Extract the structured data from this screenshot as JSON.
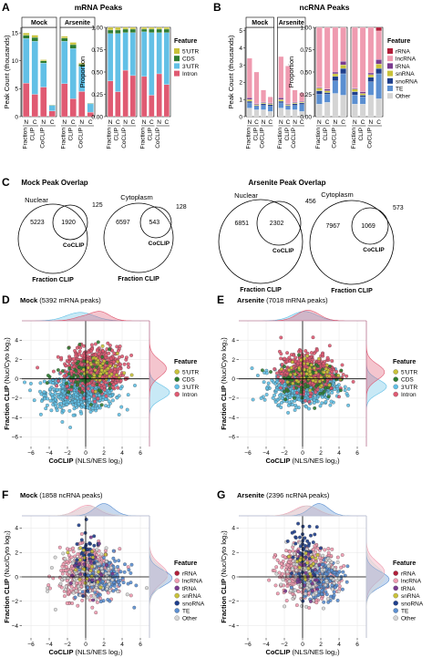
{
  "panel_letters": [
    "A",
    "B",
    "C",
    "D",
    "E",
    "F",
    "G"
  ],
  "colors": {
    "5UTR": "#c9c23a",
    "CDS": "#2f7d32",
    "3UTR": "#62c0e6",
    "Intron": "#e05a72",
    "rRNA": "#b21f3a",
    "lncRNA": "#ef9bb0",
    "tRNA": "#7a3b8f",
    "snRNA": "#c9c23a",
    "snoRNA": "#1f3f8c",
    "TE": "#5b8fd1",
    "Other": "#d4d4d4"
  },
  "chart_data": [
    {
      "id": "A",
      "type": "bar",
      "title": "mRNA Peaks",
      "groups": [
        "Mock",
        "Arsenite"
      ],
      "subgroups": [
        {
          "label": "Fraction CLIP",
          "bars": [
            "N",
            "C"
          ]
        },
        {
          "label": "CoCLIP",
          "bars": [
            "N",
            "C"
          ]
        }
      ],
      "legend_title": "Feature",
      "legend": [
        "5'UTR",
        "CDS",
        "3'UTR",
        "Intron"
      ],
      "count_panel": {
        "ylabel": "Peak Count (thousands)",
        "ylim": [
          0,
          16
        ],
        "ticks": [
          0,
          5,
          10,
          15
        ],
        "series": [
          {
            "name": "Intron",
            "values": [
              6.0,
              4.0,
              5.3,
              1.0,
              5.9,
              3.2,
              4.5,
              0.8
            ]
          },
          {
            "name": "3'UTR",
            "values": [
              8.0,
              9.5,
              4.3,
              1.0,
              7.6,
              9.0,
              4.5,
              1.5
            ]
          },
          {
            "name": "CDS",
            "values": [
              0.6,
              0.7,
              0.4,
              0.1,
              0.6,
              0.7,
              0.4,
              0.1
            ]
          },
          {
            "name": "5'UTR",
            "values": [
              0.4,
              0.4,
              0.2,
              0.0,
              0.3,
              0.4,
              0.2,
              0.0
            ]
          }
        ]
      },
      "prop_panel": {
        "ylabel": "Proportion",
        "ylim": [
          0,
          1
        ],
        "ticks": [
          "0.00",
          "0.25",
          "0.50",
          "0.75",
          "1.00"
        ],
        "series": [
          {
            "name": "Intron",
            "values": [
              0.4,
              0.28,
              0.52,
              0.46,
              0.45,
              0.24,
              0.48,
              0.36
            ]
          },
          {
            "name": "3'UTR",
            "values": [
              0.53,
              0.65,
              0.42,
              0.48,
              0.5,
              0.7,
              0.46,
              0.58
            ]
          },
          {
            "name": "CDS",
            "values": [
              0.04,
              0.04,
              0.04,
              0.04,
              0.03,
              0.04,
              0.04,
              0.04
            ]
          },
          {
            "name": "5'UTR",
            "values": [
              0.03,
              0.03,
              0.02,
              0.02,
              0.02,
              0.02,
              0.02,
              0.02
            ]
          }
        ]
      }
    },
    {
      "id": "B",
      "type": "bar",
      "title": "ncRNA Peaks",
      "groups": [
        "Mock",
        "Arsenite"
      ],
      "subgroups": [
        {
          "label": "Fraction CLIP",
          "bars": [
            "N",
            "C"
          ]
        },
        {
          "label": "CoCLIP",
          "bars": [
            "N",
            "C"
          ]
        }
      ],
      "legend_title": "Feature",
      "legend": [
        "rRNA",
        "lncRNA",
        "tRNA",
        "snRNA",
        "snoRNA",
        "TE",
        "Other"
      ],
      "count_panel": {
        "ylabel": "Peak Count (thousands)",
        "ylim": [
          0,
          5.2
        ],
        "ticks": [
          0,
          1,
          2,
          3,
          4,
          5
        ],
        "series": [
          {
            "name": "Other",
            "values": [
              0.5,
              0.4,
              0.4,
              0.3,
              0.5,
              0.4,
              0.4,
              0.3
            ]
          },
          {
            "name": "TE",
            "values": [
              0.3,
              0.2,
              0.25,
              0.3,
              0.3,
              0.2,
              0.25,
              0.4
            ]
          },
          {
            "name": "snoRNA",
            "values": [
              0.1,
              0.05,
              0.1,
              0.1,
              0.1,
              0.05,
              0.1,
              0.1
            ]
          },
          {
            "name": "snRNA",
            "values": [
              0.1,
              0.05,
              0.05,
              0.05,
              0.1,
              0.05,
              0.05,
              0.05
            ]
          },
          {
            "name": "tRNA",
            "values": [
              0.1,
              0.05,
              0.05,
              0.05,
              0.1,
              0.05,
              0.05,
              0.05
            ]
          },
          {
            "name": "lncRNA",
            "values": [
              2.3,
              1.85,
              0.7,
              0.35,
              2.4,
              2.2,
              0.7,
              0.5
            ]
          },
          {
            "name": "rRNA",
            "values": [
              0.0,
              0.0,
              0.0,
              0.0,
              0.0,
              0.0,
              0.0,
              0.0
            ]
          }
        ]
      },
      "prop_panel": {
        "ylabel": "Proportion",
        "ylim": [
          0,
          1
        ],
        "ticks": [
          "0.00",
          "0.25",
          "0.50",
          "0.75",
          "1.00"
        ],
        "series": [
          {
            "name": "Other",
            "values": [
              0.14,
              0.16,
              0.26,
              0.24,
              0.14,
              0.14,
              0.24,
              0.2
            ]
          },
          {
            "name": "TE",
            "values": [
              0.11,
              0.09,
              0.14,
              0.24,
              0.1,
              0.08,
              0.15,
              0.28
            ]
          },
          {
            "name": "snoRNA",
            "values": [
              0.04,
              0.02,
              0.05,
              0.06,
              0.04,
              0.02,
              0.05,
              0.06
            ]
          },
          {
            "name": "snRNA",
            "values": [
              0.03,
              0.02,
              0.03,
              0.04,
              0.03,
              0.02,
              0.03,
              0.05
            ]
          },
          {
            "name": "tRNA",
            "values": [
              0.01,
              0.02,
              0.02,
              0.04,
              0.01,
              0.02,
              0.02,
              0.05
            ]
          },
          {
            "name": "lncRNA",
            "values": [
              0.67,
              0.69,
              0.5,
              0.38,
              0.68,
              0.72,
              0.51,
              0.32
            ]
          },
          {
            "name": "rRNA",
            "values": [
              0.0,
              0.0,
              0.0,
              0.0,
              0.0,
              0.0,
              0.0,
              0.04
            ]
          }
        ]
      }
    },
    {
      "id": "C",
      "type": "venn",
      "panels": [
        {
          "title": "Mock Peak Overlap",
          "venns": [
            {
              "title": "Nuclear",
              "big_label": "Fraction CLIP",
              "small_label": "CoCLIP",
              "only_big": "5223",
              "both": "1920",
              "only_small": "125"
            },
            {
              "title": "Cytoplasm",
              "big_label": "Fraction CLIP",
              "small_label": "CoCLIP",
              "only_big": "6597",
              "both": "543",
              "only_small": "128"
            }
          ]
        },
        {
          "title": "Arsenite Peak Overlap",
          "venns": [
            {
              "title": "Nuclear",
              "big_label": "Fraction CLIP",
              "small_label": "CoCLIP",
              "only_big": "6851",
              "both": "2302",
              "only_small": "456"
            },
            {
              "title": "Cytoplasm",
              "big_label": "Fraction CLIP",
              "small_label": "CoCLIP",
              "only_big": "7967",
              "both": "1069",
              "only_small": "573"
            }
          ]
        }
      ]
    },
    {
      "id": "D",
      "type": "scatter",
      "title_bold": "Mock",
      "title_rest": "(5392 mRNA peaks)",
      "xlabel_bold": "CoCLIP",
      "xlabel_rest": "(NLS/NES log₂)",
      "ylabel_bold": "Fraction CLIP",
      "ylabel_rest": "(Nuc/Cyto log₂)",
      "xlim": [
        -7,
        7
      ],
      "ylim": [
        -7,
        6
      ],
      "xticks": [
        -6,
        -4,
        -2,
        0,
        2,
        4,
        6
      ],
      "yticks": [
        -6,
        -4,
        -2,
        0,
        2,
        4
      ],
      "legend_title": "Feature",
      "legend": [
        "5'UTR",
        "CDS",
        "3'UTR",
        "Intron"
      ],
      "clusters": [
        {
          "name": "3'UTR",
          "count": 650,
          "cx": -0.6,
          "cy": -1.4,
          "sx": 1.9,
          "sy": 0.9
        },
        {
          "name": "Intron",
          "count": 420,
          "cx": 1.6,
          "cy": 1.1,
          "sx": 1.3,
          "sy": 1.1
        },
        {
          "name": "Intron",
          "count": 160,
          "cx": -0.4,
          "cy": 1.0,
          "sx": 1.3,
          "sy": 1.0
        },
        {
          "name": "CDS",
          "count": 70,
          "cx": 0.0,
          "cy": 0.3,
          "sx": 1.6,
          "sy": 1.2
        },
        {
          "name": "5'UTR",
          "count": 50,
          "cx": 1.5,
          "cy": 0.8,
          "sx": 1.2,
          "sy": 1.0
        }
      ]
    },
    {
      "id": "E",
      "type": "scatter",
      "title_bold": "Arsenite",
      "title_rest": "(7018 mRNA peaks)",
      "xlabel_bold": "CoCLIP",
      "xlabel_rest": "(NLS/NES log₂)",
      "ylabel_bold": "Fraction CLIP",
      "ylabel_rest": "(Nuc/Cyto log₂)",
      "xlim": [
        -7,
        7
      ],
      "ylim": [
        -7,
        6
      ],
      "xticks": [
        -6,
        -4,
        -2,
        0,
        2,
        4,
        6
      ],
      "yticks": [
        -6,
        -4,
        -2,
        0,
        2,
        4
      ],
      "legend_title": "Feature",
      "legend": [
        "5'UTR",
        "CDS",
        "3'UTR",
        "Intron"
      ],
      "clusters": [
        {
          "name": "3'UTR",
          "count": 650,
          "cx": 0.2,
          "cy": -0.8,
          "sx": 1.7,
          "sy": 0.9
        },
        {
          "name": "Intron",
          "count": 520,
          "cx": 0.6,
          "cy": 0.7,
          "sx": 1.5,
          "sy": 1.0
        },
        {
          "name": "CDS",
          "count": 80,
          "cx": 0.3,
          "cy": 0.0,
          "sx": 1.6,
          "sy": 1.0
        },
        {
          "name": "5'UTR",
          "count": 60,
          "cx": 0.8,
          "cy": 0.5,
          "sx": 1.3,
          "sy": 0.9
        }
      ]
    },
    {
      "id": "F",
      "type": "scatter",
      "title_bold": "Mock",
      "title_rest": "(1858 ncRNA peaks)",
      "xlabel_bold": "CoCLIP",
      "xlabel_rest": "(NLS/NES log₂)",
      "ylabel_bold": "Fraction CLIP",
      "ylabel_rest": "(Nuc/Cyto log₂)",
      "xlim": [
        -7,
        7
      ],
      "ylim": [
        -5,
        5
      ],
      "xticks": [
        -6,
        -4,
        -2,
        0,
        2,
        4,
        6
      ],
      "yticks": [
        -4,
        -2,
        0,
        2,
        4
      ],
      "legend_title": "Feature",
      "legend": [
        "rRNA",
        "lncRNA",
        "tRNA",
        "snRNA",
        "snoRNA",
        "TE",
        "Other"
      ],
      "clusters": [
        {
          "name": "lncRNA",
          "count": 420,
          "cx": 0.2,
          "cy": 0.2,
          "sx": 1.5,
          "sy": 1.0
        },
        {
          "name": "TE",
          "count": 170,
          "cx": 2.0,
          "cy": -0.1,
          "sx": 1.3,
          "sy": 0.8
        },
        {
          "name": "Other",
          "count": 120,
          "cx": 0.5,
          "cy": 0.0,
          "sx": 1.7,
          "sy": 1.0
        },
        {
          "name": "snoRNA",
          "count": 40,
          "cx": 0.0,
          "cy": 1.8,
          "sx": 0.7,
          "sy": 1.2
        },
        {
          "name": "tRNA",
          "count": 25,
          "cx": 0.4,
          "cy": 0.5,
          "sx": 1.0,
          "sy": 1.0
        },
        {
          "name": "snRNA",
          "count": 20,
          "cx": 0.3,
          "cy": 0.8,
          "sx": 1.0,
          "sy": 1.0
        }
      ]
    },
    {
      "id": "G",
      "type": "scatter",
      "title_bold": "Arsenite",
      "title_rest": "(2396 ncRNA peaks)",
      "xlabel_bold": "CoCLIP",
      "xlabel_rest": "(NLS/NES log₂)",
      "ylabel_bold": "Fraction CLIP",
      "ylabel_rest": "(Nuc/Cyto log₂)",
      "xlim": [
        -7,
        7
      ],
      "ylim": [
        -5,
        5
      ],
      "xticks": [
        -6,
        -4,
        -2,
        0,
        2,
        4,
        6
      ],
      "yticks": [
        -4,
        -2,
        0,
        2,
        4
      ],
      "legend_title": "Feature",
      "legend": [
        "rRNA",
        "lncRNA",
        "tRNA",
        "snRNA",
        "snoRNA",
        "TE",
        "Other"
      ],
      "clusters": [
        {
          "name": "lncRNA",
          "count": 470,
          "cx": 0.4,
          "cy": 0.4,
          "sx": 1.6,
          "sy": 1.0
        },
        {
          "name": "TE",
          "count": 190,
          "cx": 1.8,
          "cy": -0.2,
          "sx": 1.3,
          "sy": 0.8
        },
        {
          "name": "Other",
          "count": 130,
          "cx": 0.6,
          "cy": 0.0,
          "sx": 1.6,
          "sy": 1.0
        },
        {
          "name": "snoRNA",
          "count": 50,
          "cx": 0.3,
          "cy": 2.0,
          "sx": 0.8,
          "sy": 1.2
        },
        {
          "name": "tRNA",
          "count": 25,
          "cx": 0.5,
          "cy": 0.6,
          "sx": 1.0,
          "sy": 1.0
        },
        {
          "name": "snRNA",
          "count": 20,
          "cx": 0.4,
          "cy": 0.8,
          "sx": 1.0,
          "sy": 1.0
        }
      ]
    }
  ]
}
